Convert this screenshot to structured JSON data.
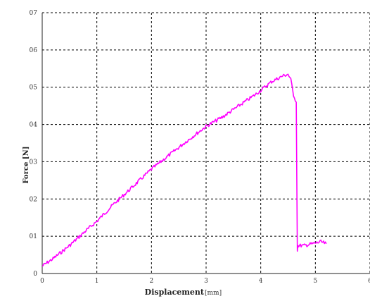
{
  "chart_data": {
    "type": "line",
    "title": "",
    "xlabel": "Displacement",
    "xlabel_unit": "[mm]",
    "ylabel": "Force [N]",
    "xlim": [
      0,
      6
    ],
    "ylim": [
      0,
      0.7
    ],
    "grid": true,
    "grid_style": "dashed",
    "x_ticks": [
      "0",
      "1",
      "2",
      "3",
      "4",
      "5",
      "6"
    ],
    "y_ticks": [
      "0",
      "01",
      "02",
      "03",
      "04",
      "05",
      "06",
      "07"
    ],
    "x_tick_values": [
      0,
      1,
      2,
      3,
      4,
      5,
      6
    ],
    "y_tick_values": [
      0,
      0.1,
      0.2,
      0.3,
      0.4,
      0.5,
      0.6,
      0.7
    ],
    "series": [
      {
        "color": "#ff00ff",
        "x": [
          0.0,
          0.2,
          0.5,
          0.8,
          1.0,
          1.3,
          1.6,
          2.0,
          2.3,
          2.6,
          3.0,
          3.3,
          3.6,
          3.9,
          4.2,
          4.4,
          4.5,
          4.55,
          4.6,
          4.65,
          4.66,
          4.67,
          4.68,
          4.8,
          4.95,
          5.1,
          5.2
        ],
        "y": [
          0.02,
          0.04,
          0.075,
          0.115,
          0.14,
          0.185,
          0.225,
          0.28,
          0.315,
          0.35,
          0.395,
          0.42,
          0.45,
          0.48,
          0.515,
          0.53,
          0.535,
          0.52,
          0.48,
          0.46,
          0.26,
          0.06,
          0.075,
          0.075,
          0.08,
          0.085,
          0.08
        ]
      }
    ]
  }
}
